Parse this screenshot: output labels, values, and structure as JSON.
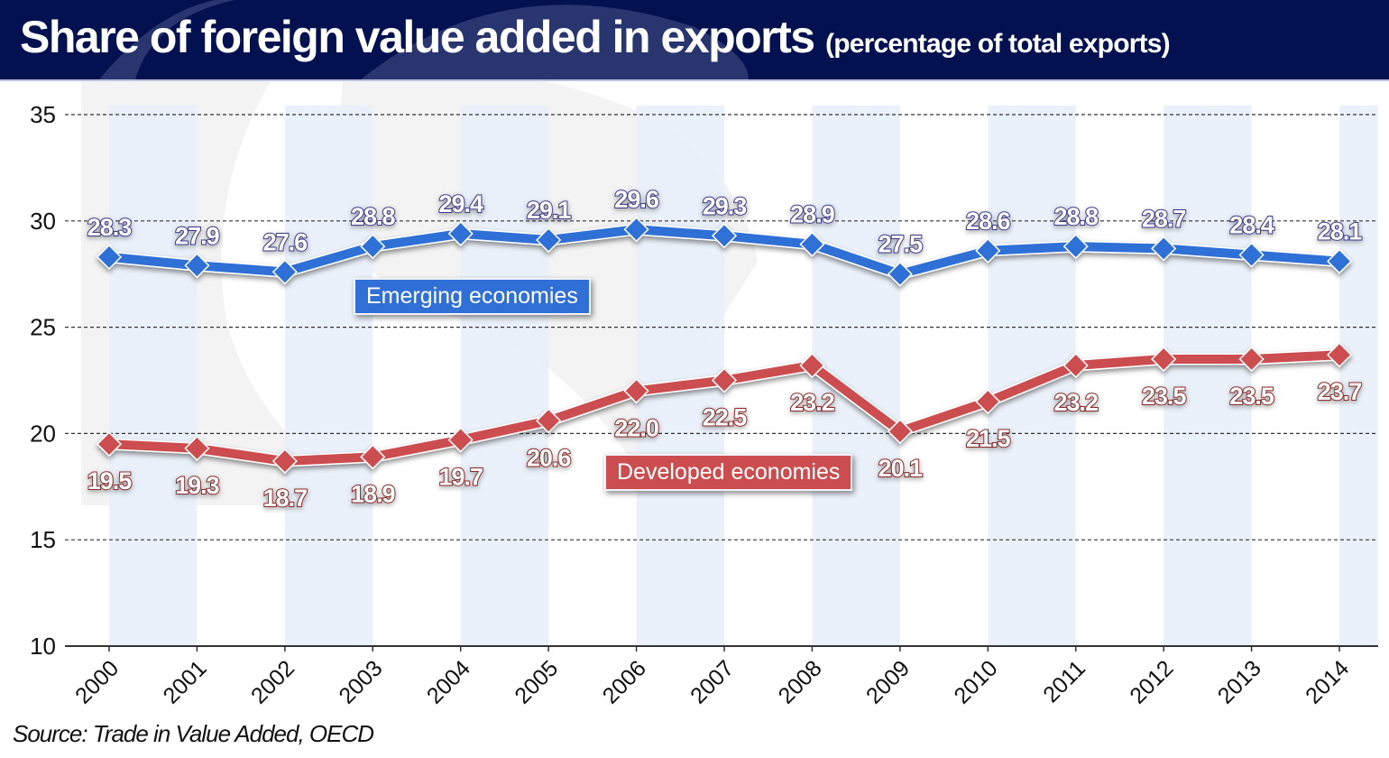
{
  "header": {
    "title": "Share of foreign value added in exports",
    "subtitle": "(percentage of total exports)"
  },
  "source": "Source: Trade in Value Added, OECD",
  "colors": {
    "header_bg": "#031150",
    "emerging": "#2f6fd6",
    "developed": "#cc4d4f",
    "emerging_label_outline": "#3a3a8a",
    "developed_label_outline": "#8b2a2a",
    "band": "#e8eff9"
  },
  "chart_data": {
    "type": "line",
    "title": "Share of foreign value added in exports",
    "subtitle": "(percentage of total exports)",
    "xlabel": "",
    "ylabel": "",
    "x": [
      "2000",
      "2001",
      "2002",
      "2003",
      "2004",
      "2005",
      "2006",
      "2007",
      "2008",
      "2009",
      "2010",
      "2011",
      "2012",
      "2013",
      "2014"
    ],
    "yticks": [
      "35",
      "30",
      "25",
      "20",
      "15",
      "10"
    ],
    "ylim": [
      10,
      35
    ],
    "grid": "horizontal dashed",
    "series": [
      {
        "name": "Emerging economies",
        "values": [
          28.3,
          27.9,
          27.6,
          28.8,
          29.4,
          29.1,
          29.6,
          29.3,
          28.9,
          27.5,
          28.6,
          28.8,
          28.7,
          28.4,
          28.1
        ],
        "labels": [
          "28.3",
          "27.9",
          "27.6",
          "28.8",
          "29.4",
          "29.1",
          "29.6",
          "29.3",
          "28.9",
          "27.5",
          "28.6",
          "28.8",
          "28.7",
          "28.4",
          "28.1"
        ],
        "label_position": "above"
      },
      {
        "name": "Developed economies",
        "values": [
          19.5,
          19.3,
          18.7,
          18.9,
          19.7,
          20.6,
          22.0,
          22.5,
          23.2,
          20.1,
          21.5,
          23.2,
          23.5,
          23.5,
          23.7
        ],
        "labels": [
          "19.5",
          "19.3",
          "18.7",
          "18.9",
          "19.7",
          "20.6",
          "22.0",
          "22.5",
          "23.2",
          "20.1",
          "21.5",
          "23.2",
          "23.5",
          "23.5",
          "23.7"
        ],
        "label_position": "below"
      }
    ],
    "legend": "inline labels near each series"
  }
}
